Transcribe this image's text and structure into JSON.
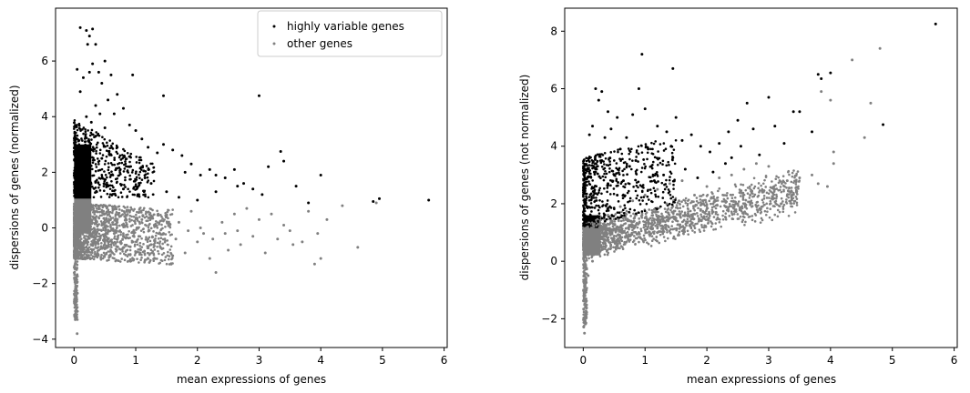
{
  "chart_data": [
    {
      "type": "scatter",
      "xlabel": "mean expressions of genes",
      "ylabel": "dispersions of genes (normalized)",
      "xlim": [
        -0.3,
        6.05
      ],
      "ylim": [
        -4.3,
        7.9
      ],
      "xticks": [
        0,
        1,
        2,
        3,
        4,
        5,
        6
      ],
      "yticks": [
        -4,
        -2,
        0,
        2,
        4,
        6
      ],
      "legend": {
        "position": "top-right",
        "entries": [
          "highly variable genes",
          "other genes"
        ]
      },
      "series": [
        {
          "name": "highly variable genes",
          "color": "#000000",
          "points": [
            [
              0.1,
              7.2
            ],
            [
              0.2,
              7.1
            ],
            [
              0.25,
              6.9
            ],
            [
              0.3,
              7.15
            ],
            [
              0.35,
              6.6
            ],
            [
              0.22,
              6.6
            ],
            [
              0.3,
              5.9
            ],
            [
              0.5,
              6.0
            ],
            [
              0.4,
              5.6
            ],
            [
              0.25,
              5.6
            ],
            [
              0.15,
              5.4
            ],
            [
              0.05,
              5.7
            ],
            [
              0.6,
              5.5
            ],
            [
              0.95,
              5.5
            ],
            [
              0.45,
              5.2
            ],
            [
              0.7,
              4.8
            ],
            [
              0.55,
              4.6
            ],
            [
              0.8,
              4.3
            ],
            [
              1.45,
              4.75
            ],
            [
              3.0,
              4.75
            ],
            [
              0.35,
              4.4
            ],
            [
              0.2,
              4.0
            ],
            [
              0.1,
              4.9
            ],
            [
              0.65,
              4.1
            ],
            [
              0.9,
              3.7
            ],
            [
              1.0,
              3.5
            ],
            [
              1.1,
              3.2
            ],
            [
              1.2,
              2.9
            ],
            [
              1.35,
              2.7
            ],
            [
              1.45,
              3.0
            ],
            [
              1.6,
              2.8
            ],
            [
              1.75,
              2.6
            ],
            [
              1.8,
              2.0
            ],
            [
              1.9,
              2.3
            ],
            [
              2.05,
              1.9
            ],
            [
              2.2,
              2.1
            ],
            [
              2.3,
              1.9
            ],
            [
              2.45,
              1.8
            ],
            [
              2.6,
              2.1
            ],
            [
              2.75,
              1.6
            ],
            [
              2.9,
              1.4
            ],
            [
              3.15,
              2.2
            ],
            [
              3.35,
              2.75
            ],
            [
              3.4,
              2.4
            ],
            [
              3.6,
              1.5
            ],
            [
              3.8,
              0.9
            ],
            [
              4.0,
              1.9
            ],
            [
              4.85,
              0.95
            ],
            [
              4.95,
              1.05
            ],
            [
              5.75,
              1.0
            ],
            [
              2.0,
              1.0
            ],
            [
              2.3,
              1.3
            ],
            [
              1.7,
              1.1
            ],
            [
              1.5,
              1.3
            ],
            [
              1.25,
              1.6
            ],
            [
              1.05,
              1.2
            ],
            [
              0.8,
              1.4
            ],
            [
              0.6,
              1.9
            ],
            [
              0.45,
              2.5
            ],
            [
              0.35,
              3.3
            ],
            [
              0.28,
              3.8
            ],
            [
              0.7,
              2.9
            ],
            [
              0.9,
              2.2
            ],
            [
              1.15,
              1.8
            ],
            [
              2.65,
              1.5
            ],
            [
              3.05,
              1.2
            ],
            [
              0.5,
              3.6
            ],
            [
              0.42,
              4.1
            ],
            [
              0.18,
              3.1
            ],
            [
              0.25,
              2.7
            ],
            [
              0.55,
              1.5
            ],
            [
              0.75,
              2.1
            ]
          ]
        },
        {
          "name": "other genes",
          "color": "#808080",
          "points": [
            [
              0.05,
              -3.8
            ],
            [
              0.02,
              -3.3
            ],
            [
              0.03,
              -2.2
            ],
            [
              0.04,
              -1.5
            ],
            [
              0.2,
              -0.5
            ],
            [
              0.4,
              -0.8
            ],
            [
              0.6,
              -0.6
            ],
            [
              0.8,
              -0.3
            ],
            [
              1.0,
              -0.9
            ],
            [
              1.2,
              -0.4
            ],
            [
              1.4,
              -0.7
            ],
            [
              1.6,
              -1.0
            ],
            [
              1.8,
              -0.9
            ],
            [
              2.0,
              -0.5
            ],
            [
              2.2,
              -1.1
            ],
            [
              2.3,
              -1.6
            ],
            [
              2.5,
              -0.8
            ],
            [
              2.7,
              -0.6
            ],
            [
              2.9,
              -0.3
            ],
            [
              3.1,
              -0.9
            ],
            [
              3.3,
              -0.4
            ],
            [
              3.5,
              -0.1
            ],
            [
              3.7,
              -0.5
            ],
            [
              3.9,
              -1.3
            ],
            [
              4.0,
              -1.1
            ],
            [
              4.35,
              0.8
            ],
            [
              4.6,
              -0.7
            ],
            [
              4.9,
              0.9
            ],
            [
              1.1,
              0.3
            ],
            [
              1.3,
              0.1
            ],
            [
              1.5,
              0.4
            ],
            [
              1.7,
              0.2
            ],
            [
              1.9,
              0.6
            ],
            [
              2.1,
              -0.2
            ],
            [
              2.4,
              0.2
            ],
            [
              2.6,
              0.5
            ],
            [
              2.8,
              0.7
            ],
            [
              3.0,
              0.3
            ],
            [
              3.2,
              0.5
            ],
            [
              3.4,
              0.1
            ],
            [
              3.8,
              0.6
            ],
            [
              4.1,
              0.3
            ],
            [
              0.5,
              0.5
            ],
            [
              0.7,
              0.2
            ],
            [
              0.9,
              0.6
            ],
            [
              0.3,
              -0.2
            ],
            [
              0.45,
              0.1
            ],
            [
              0.65,
              -0.2
            ],
            [
              0.85,
              0.1
            ],
            [
              1.05,
              -0.3
            ],
            [
              1.25,
              -0.6
            ],
            [
              1.45,
              -0.2
            ],
            [
              1.65,
              -0.4
            ],
            [
              1.85,
              -0.1
            ],
            [
              2.05,
              0.0
            ],
            [
              2.25,
              -0.4
            ],
            [
              2.45,
              -0.2
            ],
            [
              2.65,
              -0.1
            ],
            [
              3.55,
              -0.6
            ],
            [
              3.95,
              -0.2
            ]
          ]
        }
      ]
    },
    {
      "type": "scatter",
      "xlabel": "mean expressions of genes",
      "ylabel": "dispersions of genes (not normalized)",
      "xlim": [
        -0.3,
        6.05
      ],
      "ylim": [
        -3.0,
        8.8
      ],
      "xticks": [
        0,
        1,
        2,
        3,
        4,
        5,
        6
      ],
      "yticks": [
        -2,
        0,
        2,
        4,
        6,
        8
      ],
      "series": [
        {
          "name": "highly variable genes",
          "color": "#000000",
          "points": [
            [
              5.7,
              8.25
            ],
            [
              0.95,
              7.2
            ],
            [
              1.45,
              6.7
            ],
            [
              0.2,
              6.0
            ],
            [
              0.3,
              5.9
            ],
            [
              0.25,
              5.6
            ],
            [
              0.4,
              5.2
            ],
            [
              0.55,
              5.0
            ],
            [
              0.9,
              6.0
            ],
            [
              0.8,
              5.1
            ],
            [
              1.0,
              5.3
            ],
            [
              1.2,
              4.7
            ],
            [
              1.35,
              4.5
            ],
            [
              1.5,
              5.0
            ],
            [
              1.6,
              4.2
            ],
            [
              1.75,
              4.4
            ],
            [
              1.9,
              4.0
            ],
            [
              2.05,
              3.8
            ],
            [
              2.2,
              4.1
            ],
            [
              2.35,
              4.5
            ],
            [
              2.5,
              4.9
            ],
            [
              2.65,
              5.5
            ],
            [
              2.75,
              4.6
            ],
            [
              2.55,
              4.0
            ],
            [
              2.4,
              3.6
            ],
            [
              2.85,
              3.7
            ],
            [
              3.0,
              5.7
            ],
            [
              3.1,
              4.7
            ],
            [
              3.25,
              4.1
            ],
            [
              3.4,
              5.2
            ],
            [
              3.5,
              5.2
            ],
            [
              3.7,
              4.5
            ],
            [
              3.8,
              6.5
            ],
            [
              3.85,
              6.35
            ],
            [
              4.0,
              6.55
            ],
            [
              4.85,
              4.75
            ],
            [
              0.15,
              4.7
            ],
            [
              0.1,
              4.4
            ],
            [
              0.35,
              4.3
            ],
            [
              0.45,
              4.6
            ],
            [
              0.6,
              3.9
            ],
            [
              0.7,
              4.3
            ],
            [
              0.85,
              3.5
            ],
            [
              1.1,
              3.3
            ],
            [
              1.3,
              3.0
            ],
            [
              1.45,
              3.6
            ],
            [
              1.65,
              3.2
            ],
            [
              1.85,
              2.9
            ],
            [
              2.1,
              3.1
            ],
            [
              2.3,
              3.4
            ],
            [
              0.5,
              3.0
            ],
            [
              0.65,
              2.8
            ],
            [
              0.75,
              3.3
            ],
            [
              0.95,
              2.6
            ],
            [
              1.15,
              2.8
            ],
            [
              0.3,
              3.5
            ],
            [
              0.2,
              3.1
            ],
            [
              0.4,
              2.7
            ],
            [
              0.55,
              2.3
            ],
            [
              1.05,
              3.9
            ]
          ]
        },
        {
          "name": "other genes",
          "color": "#808080",
          "points": [
            [
              0.02,
              -2.5
            ],
            [
              0.03,
              -2.1
            ],
            [
              0.04,
              -1.6
            ],
            [
              0.05,
              -1.0
            ],
            [
              0.08,
              -0.5
            ],
            [
              0.15,
              0.0
            ],
            [
              0.3,
              0.4
            ],
            [
              0.5,
              0.7
            ],
            [
              0.7,
              0.9
            ],
            [
              0.9,
              1.0
            ],
            [
              1.1,
              1.2
            ],
            [
              1.3,
              1.4
            ],
            [
              1.5,
              1.5
            ],
            [
              1.7,
              1.6
            ],
            [
              1.9,
              1.8
            ],
            [
              2.1,
              2.0
            ],
            [
              2.3,
              2.1
            ],
            [
              2.5,
              2.0
            ],
            [
              2.7,
              2.3
            ],
            [
              2.9,
              2.4
            ],
            [
              3.1,
              2.5
            ],
            [
              3.3,
              2.8
            ],
            [
              3.5,
              2.9
            ],
            [
              3.7,
              3.0
            ],
            [
              3.8,
              2.7
            ],
            [
              3.95,
              2.6
            ],
            [
              4.05,
              3.4
            ],
            [
              4.05,
              3.8
            ],
            [
              4.35,
              7.0
            ],
            [
              4.55,
              4.3
            ],
            [
              4.65,
              5.5
            ],
            [
              4.8,
              7.4
            ],
            [
              4.0,
              5.6
            ],
            [
              3.85,
              5.9
            ],
            [
              0.4,
              1.6
            ],
            [
              0.6,
              1.9
            ],
            [
              0.8,
              2.1
            ],
            [
              1.0,
              2.3
            ],
            [
              1.2,
              2.5
            ],
            [
              1.4,
              2.7
            ],
            [
              1.6,
              2.8
            ],
            [
              1.8,
              2.3
            ],
            [
              2.0,
              2.6
            ],
            [
              2.2,
              2.9
            ],
            [
              2.4,
              3.0
            ],
            [
              2.6,
              3.2
            ],
            [
              2.8,
              3.4
            ],
            [
              3.0,
              3.3
            ],
            [
              0.35,
              1.0
            ],
            [
              0.55,
              1.2
            ],
            [
              0.75,
              1.4
            ],
            [
              0.95,
              1.6
            ],
            [
              1.15,
              1.8
            ],
            [
              1.35,
              2.0
            ],
            [
              1.55,
              2.1
            ],
            [
              1.75,
              1.3
            ],
            [
              1.95,
              1.5
            ],
            [
              2.15,
              1.7
            ],
            [
              3.2,
              2.0
            ],
            [
              3.45,
              2.4
            ]
          ]
        }
      ]
    }
  ]
}
